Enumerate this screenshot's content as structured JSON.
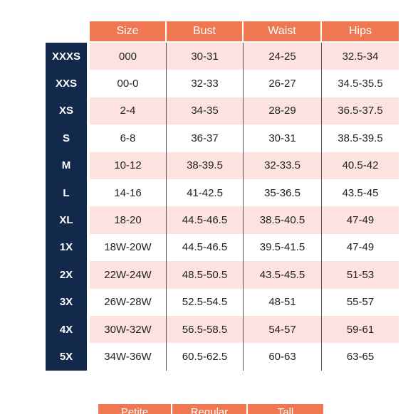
{
  "headers": {
    "size": "Size",
    "bust": "Bust",
    "waist": "Waist",
    "hips": "Hips"
  },
  "rows": [
    {
      "label": "XXXS",
      "size": "000",
      "bust": "30-31",
      "waist": "24-25",
      "hips": "32.5-34"
    },
    {
      "label": "XXS",
      "size": "00-0",
      "bust": "32-33",
      "waist": "26-27",
      "hips": "34.5-35.5"
    },
    {
      "label": "XS",
      "size": "2-4",
      "bust": "34-35",
      "waist": "28-29",
      "hips": "36.5-37.5"
    },
    {
      "label": "S",
      "size": "6-8",
      "bust": "36-37",
      "waist": "30-31",
      "hips": "38.5-39.5"
    },
    {
      "label": "M",
      "size": "10-12",
      "bust": "38-39.5",
      "waist": "32-33.5",
      "hips": "40.5-42"
    },
    {
      "label": "L",
      "size": "14-16",
      "bust": "41-42.5",
      "waist": "35-36.5",
      "hips": "43.5-45"
    },
    {
      "label": "XL",
      "size": "18-20",
      "bust": "44.5-46.5",
      "waist": "38.5-40.5",
      "hips": "47-49"
    },
    {
      "label": "1X",
      "size": "18W-20W",
      "bust": "44.5-46.5",
      "waist": "39.5-41.5",
      "hips": "47-49"
    },
    {
      "label": "2X",
      "size": "22W-24W",
      "bust": "48.5-50.5",
      "waist": "43.5-45.5",
      "hips": "51-53"
    },
    {
      "label": "3X",
      "size": "26W-28W",
      "bust": "52.5-54.5",
      "waist": "48-51",
      "hips": "55-57"
    },
    {
      "label": "4X",
      "size": "30W-32W",
      "bust": "56.5-58.5",
      "waist": "54-57",
      "hips": "59-61"
    },
    {
      "label": "5X",
      "size": "34W-36W",
      "bust": "60.5-62.5",
      "waist": "60-63",
      "hips": "63-65"
    }
  ],
  "length_headers": {
    "petite": "Petite",
    "regular": "Regular",
    "tall": "Tall"
  },
  "colors": {
    "header_bg": "#ef7752",
    "side_bg": "#13294b",
    "row_alt": "#fde3df"
  }
}
